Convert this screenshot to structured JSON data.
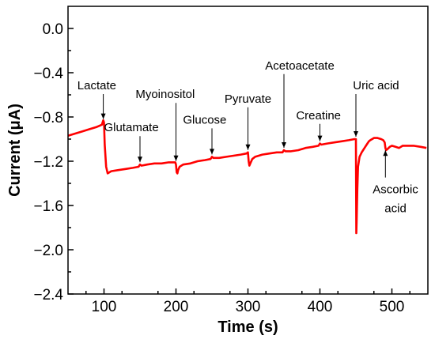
{
  "chart_data": {
    "type": "line",
    "title": "",
    "xlabel": "Time (s)",
    "ylabel": "Current (μA)",
    "xlim": [
      50,
      550
    ],
    "ylim": [
      -2.4,
      0.2
    ],
    "xticks": [
      100,
      200,
      300,
      400,
      500
    ],
    "yticks": [
      "0.0",
      "−0.4",
      "−0.8",
      "−1.2",
      "−1.6",
      "−2.0",
      "−2.4"
    ],
    "yticks_values": [
      0.0,
      -0.4,
      -0.8,
      -1.2,
      -1.6,
      -2.0,
      -2.4
    ],
    "grid": false,
    "line_color": "#ff0000",
    "series": [
      {
        "x": [
          50,
          60,
          70,
          80,
          90,
          97,
          99,
          100,
          101,
          103,
          105,
          110,
          120,
          130,
          140,
          148,
          150,
          152,
          160,
          170,
          180,
          190,
          199,
          200,
          201,
          202,
          203,
          205,
          210,
          220,
          230,
          240,
          248,
          250,
          252,
          260,
          270,
          280,
          290,
          298,
          300,
          301,
          302,
          304,
          306,
          310,
          320,
          330,
          340,
          348,
          350,
          352,
          360,
          370,
          380,
          390,
          398,
          400,
          402,
          410,
          420,
          430,
          440,
          448,
          450,
          450.5,
          451,
          452,
          453,
          455,
          458,
          460,
          462,
          465,
          468,
          470,
          475,
          480,
          485,
          488,
          490,
          491,
          492,
          494,
          497,
          500,
          505,
          510,
          515,
          520,
          530,
          540,
          548
        ],
        "y": [
          -0.97,
          -0.95,
          -0.93,
          -0.91,
          -0.89,
          -0.87,
          -0.83,
          -0.85,
          -1.05,
          -1.25,
          -1.31,
          -1.29,
          -1.28,
          -1.27,
          -1.26,
          -1.25,
          -1.23,
          -1.24,
          -1.23,
          -1.22,
          -1.22,
          -1.21,
          -1.21,
          -1.23,
          -1.3,
          -1.31,
          -1.28,
          -1.25,
          -1.23,
          -1.22,
          -1.2,
          -1.19,
          -1.18,
          -1.16,
          -1.17,
          -1.17,
          -1.16,
          -1.15,
          -1.14,
          -1.13,
          -1.12,
          -1.2,
          -1.24,
          -1.21,
          -1.18,
          -1.16,
          -1.14,
          -1.13,
          -1.12,
          -1.12,
          -1.1,
          -1.11,
          -1.11,
          -1.1,
          -1.08,
          -1.07,
          -1.06,
          -1.04,
          -1.05,
          -1.04,
          -1.03,
          -1.02,
          -1.01,
          -1.0,
          -1.0,
          -1.85,
          -1.75,
          -1.45,
          -1.25,
          -1.16,
          -1.12,
          -1.1,
          -1.08,
          -1.05,
          -1.02,
          -1.01,
          -0.99,
          -0.99,
          -1.0,
          -1.01,
          -1.03,
          -1.08,
          -1.1,
          -1.09,
          -1.07,
          -1.06,
          -1.07,
          -1.08,
          -1.06,
          -1.06,
          -1.06,
          -1.07,
          -1.08
        ]
      }
    ],
    "annotations": [
      {
        "lines": [
          "Lactate"
        ],
        "arrow_x": 99,
        "arrow_y": -0.84,
        "text_x": 90,
        "text_y": -0.55
      },
      {
        "lines": [
          "Glutamate"
        ],
        "arrow_x": 150,
        "arrow_y": -1.23,
        "text_x": 138,
        "text_y": -0.93
      },
      {
        "lines": [
          "Myoinositol"
        ],
        "arrow_x": 200,
        "arrow_y": -1.22,
        "text_x": 185,
        "text_y": -0.63
      },
      {
        "lines": [
          "Glucose"
        ],
        "arrow_x": 250,
        "arrow_y": -1.16,
        "text_x": 240,
        "text_y": -0.86
      },
      {
        "lines": [
          "Pyruvate"
        ],
        "arrow_x": 300,
        "arrow_y": -1.12,
        "text_x": 300,
        "text_y": -0.67
      },
      {
        "lines": [
          "Acetoacetate"
        ],
        "arrow_x": 350,
        "arrow_y": -1.1,
        "text_x": 372,
        "text_y": -0.37
      },
      {
        "lines": [
          "Creatine"
        ],
        "arrow_x": 400,
        "arrow_y": -1.04,
        "text_x": 398,
        "text_y": -0.82
      },
      {
        "lines": [
          "Uric acid"
        ],
        "arrow_x": 450,
        "arrow_y": -1.0,
        "text_x": 478,
        "text_y": -0.55
      },
      {
        "lines": [
          "Ascorbic",
          "acid"
        ],
        "arrow_x": 491,
        "arrow_y": -1.08,
        "text_x": 505,
        "text_y": -1.49
      }
    ]
  }
}
